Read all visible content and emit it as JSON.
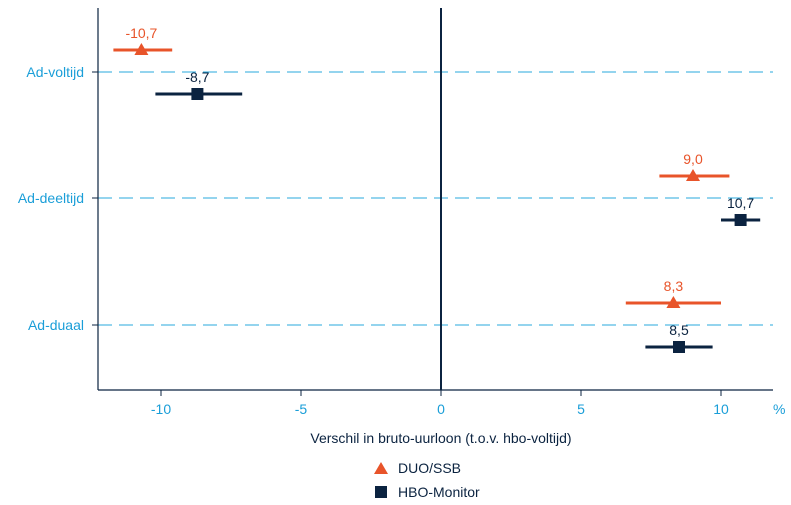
{
  "chart_data": {
    "type": "scatter",
    "subtype": "dot-with-interval",
    "categories": [
      "Ad-voltijd",
      "Ad-deeltijd",
      "Ad-duaal"
    ],
    "xlabel": "Verschil in bruto-uurloon (t.o.v. hbo-voltijd)",
    "x_unit": "%",
    "xlim": [
      -12.3,
      11.4
    ],
    "x_ticks": [
      -10,
      -5,
      0,
      5,
      10
    ],
    "x_tick_labels": [
      "-10",
      "-5",
      "0",
      "5",
      "10"
    ],
    "grid": "horizontal dashed lines at each category",
    "legend_position": "bottom-center",
    "series": [
      {
        "name": "DUO/SSB",
        "marker": "triangle",
        "color": "#e8542a",
        "values": [
          -10.7,
          9.0,
          8.3
        ],
        "value_labels": [
          "-10,7",
          "9,0",
          "8,3"
        ],
        "ci_low": [
          -11.7,
          7.8,
          6.6
        ],
        "ci_high": [
          -9.6,
          10.3,
          10.0
        ]
      },
      {
        "name": "HBO-Monitor",
        "marker": "square",
        "color": "#0b2340",
        "values": [
          -8.7,
          10.7,
          8.5
        ],
        "value_labels": [
          "-8,7",
          "10,7",
          "8,5"
        ],
        "ci_low": [
          -10.2,
          10.0,
          7.3
        ],
        "ci_high": [
          -7.1,
          11.4,
          9.7
        ]
      }
    ]
  },
  "colors": {
    "category_label": "#1a9ed8",
    "gridline": "#2aa9dd",
    "axis": "#0b2340"
  }
}
